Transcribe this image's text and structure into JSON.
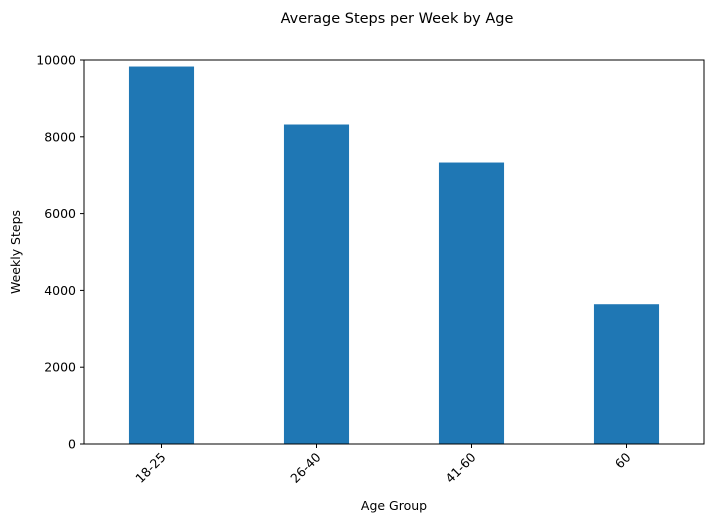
{
  "chart_data": {
    "type": "bar",
    "title": "Average Steps per Week by Age",
    "xlabel": "Age Group",
    "ylabel": "Weekly Steps",
    "categories": [
      "18-25",
      "26-40",
      "41-60",
      "60"
    ],
    "values": [
      9830,
      8320,
      7330,
      3640
    ],
    "ylim": [
      0,
      10000
    ],
    "yticks": [
      0,
      2000,
      4000,
      6000,
      8000,
      10000
    ],
    "grid": false,
    "legend": "none",
    "bar_color": "#1f77b4",
    "xtick_rotation": 45
  }
}
